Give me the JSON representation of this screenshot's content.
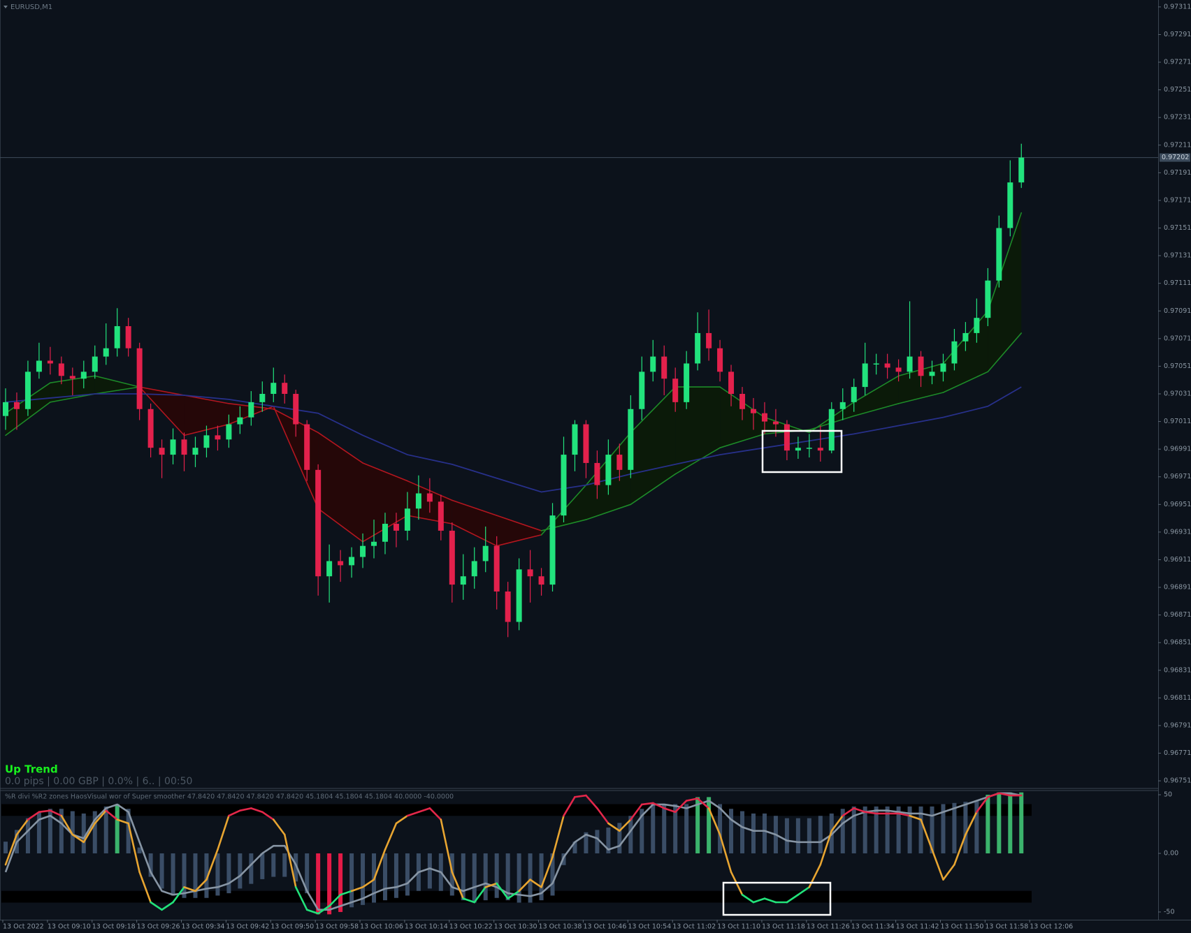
{
  "chart_data": [
    {
      "type": "candlestick",
      "title": "EURUSD,M1",
      "open": [
        0.97015,
        0.97025,
        0.9702,
        0.97047,
        0.97055,
        0.97053,
        0.97044,
        0.97042,
        0.97047,
        0.97058,
        0.97064,
        0.9708,
        0.97064,
        0.9702,
        0.96992,
        0.96987,
        0.96998,
        0.96987,
        0.96992,
        0.97001,
        0.96998,
        0.97009,
        0.97014,
        0.97025,
        0.97031,
        0.97039,
        0.97031,
        0.97009,
        0.96976,
        0.96899,
        0.9691,
        0.96907,
        0.96913,
        0.96921,
        0.96924,
        0.96937,
        0.96932,
        0.96948,
        0.96959,
        0.96953,
        0.96932,
        0.96893,
        0.96899,
        0.9691,
        0.96921,
        0.96888,
        0.96866,
        0.96904,
        0.96899,
        0.96893,
        0.96943,
        0.96987,
        0.97009,
        0.96981,
        0.96965,
        0.96987,
        0.96976,
        0.9702,
        0.97047,
        0.97058,
        0.97042,
        0.97025,
        0.97053,
        0.97075,
        0.97064,
        0.97047,
        0.97031,
        0.9702,
        0.97017,
        0.97011,
        0.97009,
        0.9699,
        0.96992,
        0.96992,
        0.9699,
        0.9702,
        0.97025,
        0.97036,
        0.97053,
        0.97053,
        0.9705,
        0.97047,
        0.97058,
        0.97044,
        0.97047,
        0.97053,
        0.97069,
        0.97075,
        0.97086,
        0.97113,
        0.97151,
        0.97184
      ],
      "high": [
        0.97035,
        0.97032,
        0.97055,
        0.97068,
        0.97065,
        0.97058,
        0.9705,
        0.97055,
        0.97066,
        0.97082,
        0.97093,
        0.97086,
        0.97068,
        0.97024,
        0.96998,
        0.97006,
        0.97003,
        0.97,
        0.97008,
        0.97008,
        0.97016,
        0.97022,
        0.97033,
        0.9704,
        0.9705,
        0.97045,
        0.97034,
        0.97012,
        0.9698,
        0.96922,
        0.96918,
        0.9692,
        0.9693,
        0.9694,
        0.96945,
        0.96945,
        0.9696,
        0.96972,
        0.9697,
        0.96958,
        0.96938,
        0.96915,
        0.9692,
        0.96935,
        0.96928,
        0.96895,
        0.96912,
        0.96918,
        0.96905,
        0.96952,
        0.97,
        0.97012,
        0.97012,
        0.9699,
        0.96998,
        0.96995,
        0.9703,
        0.97058,
        0.9707,
        0.97066,
        0.9705,
        0.97062,
        0.9709,
        0.97092,
        0.9707,
        0.97052,
        0.97036,
        0.97028,
        0.97025,
        0.9702,
        0.97012,
        0.97,
        0.97002,
        0.97008,
        0.97025,
        0.97035,
        0.97042,
        0.97068,
        0.9706,
        0.9706,
        0.97056,
        0.97098,
        0.97062,
        0.97055,
        0.9706,
        0.97078,
        0.97083,
        0.971,
        0.97122,
        0.9716,
        0.972,
        0.97212
      ],
      "low": [
        0.97005,
        0.97005,
        0.97015,
        0.97042,
        0.97045,
        0.97038,
        0.9703,
        0.97035,
        0.97042,
        0.97052,
        0.97058,
        0.97058,
        0.97012,
        0.96985,
        0.9697,
        0.9698,
        0.96975,
        0.96978,
        0.96985,
        0.9699,
        0.96992,
        0.97002,
        0.97008,
        0.97018,
        0.97025,
        0.97024,
        0.97,
        0.96968,
        0.96885,
        0.9688,
        0.96895,
        0.96898,
        0.96905,
        0.96912,
        0.96915,
        0.9692,
        0.96925,
        0.9694,
        0.96945,
        0.96925,
        0.9688,
        0.96882,
        0.9689,
        0.96902,
        0.96875,
        0.96855,
        0.9686,
        0.9688,
        0.96885,
        0.96888,
        0.96938,
        0.96975,
        0.9697,
        0.96955,
        0.96958,
        0.96968,
        0.9697,
        0.97012,
        0.9704,
        0.9703,
        0.97018,
        0.9702,
        0.97048,
        0.97055,
        0.9704,
        0.97022,
        0.97012,
        0.97005,
        0.97002,
        0.97,
        0.96983,
        0.96984,
        0.96985,
        0.96982,
        0.96988,
        0.97012,
        0.97018,
        0.9703,
        0.97045,
        0.97042,
        0.9704,
        0.97042,
        0.97036,
        0.97038,
        0.9704,
        0.97048,
        0.97062,
        0.97068,
        0.9708,
        0.97108,
        0.97145,
        0.9718
      ],
      "close": [
        0.97025,
        0.9702,
        0.97047,
        0.97055,
        0.97053,
        0.97044,
        0.97042,
        0.97047,
        0.97058,
        0.97064,
        0.9708,
        0.97064,
        0.9702,
        0.96992,
        0.96987,
        0.96998,
        0.96987,
        0.96992,
        0.97001,
        0.96998,
        0.97009,
        0.97014,
        0.97025,
        0.97031,
        0.97039,
        0.97031,
        0.97009,
        0.96976,
        0.96899,
        0.9691,
        0.96907,
        0.96913,
        0.96921,
        0.96924,
        0.96937,
        0.96932,
        0.96948,
        0.96959,
        0.96953,
        0.96932,
        0.96893,
        0.96899,
        0.9691,
        0.96921,
        0.96888,
        0.96866,
        0.96904,
        0.96899,
        0.96893,
        0.96943,
        0.96987,
        0.97009,
        0.96981,
        0.96965,
        0.96987,
        0.96976,
        0.9702,
        0.97047,
        0.97058,
        0.97042,
        0.97025,
        0.97053,
        0.97075,
        0.97064,
        0.97047,
        0.97031,
        0.9702,
        0.97017,
        0.97011,
        0.97009,
        0.9699,
        0.96992,
        0.96992,
        0.9699,
        0.9702,
        0.97025,
        0.97036,
        0.97053,
        0.97053,
        0.9705,
        0.97047,
        0.97058,
        0.97044,
        0.97047,
        0.97053,
        0.97069,
        0.97075,
        0.97086,
        0.97113,
        0.97151,
        0.97184,
        0.97202
      ],
      "up_color": "#22e37d",
      "down_color": "#e3214c",
      "ma_x": [
        0,
        4,
        8,
        12,
        16,
        20,
        24,
        28,
        32,
        36,
        40,
        44,
        48,
        52,
        56,
        60,
        64,
        68,
        72,
        76,
        80,
        84,
        88,
        91
      ],
      "slow_line": {
        "color": "#27308a",
        "values": [
          0.97025,
          0.97028,
          0.97031,
          0.97031,
          0.9703,
          0.97027,
          0.97022,
          0.97017,
          0.97001,
          0.96987,
          0.9698,
          0.9697,
          0.9696,
          0.96965,
          0.96973,
          0.9698,
          0.96987,
          0.96992,
          0.96997,
          0.97002,
          0.97008,
          0.97014,
          0.97022,
          0.97036
        ]
      },
      "fast_line": {
        "values": [
          0.97017,
          0.97039,
          0.97044,
          0.97036,
          0.97001,
          0.97009,
          0.97022,
          0.96948,
          0.96924,
          0.96943,
          0.96937,
          0.96921,
          0.96929,
          0.96965,
          0.97003,
          0.97036,
          0.97036,
          0.97014,
          0.97003,
          0.97025,
          0.97044,
          0.97053,
          0.97091,
          0.97162
        ]
      },
      "mid_line": {
        "values": [
          0.97001,
          0.97025,
          0.97031,
          0.97036,
          0.9703,
          0.97024,
          0.9702,
          0.97003,
          0.96981,
          0.96968,
          0.96954,
          0.96943,
          0.96932,
          0.9694,
          0.96951,
          0.96973,
          0.96992,
          0.97002,
          0.97005,
          0.97015,
          0.97024,
          0.97032,
          0.97047,
          0.97075
        ]
      },
      "trend_colors": {
        "up_line": "#1d8a28",
        "down_line": "#b3161f",
        "up_fill": "#0b1a09",
        "down_fill": "#250708"
      },
      "ylim": [
        0.96746,
        0.97316
      ],
      "yticks": [
        0.97311,
        0.97291,
        0.97271,
        0.97251,
        0.97231,
        0.97211,
        0.97191,
        0.97171,
        0.97151,
        0.97131,
        0.97111,
        0.97091,
        0.97071,
        0.97051,
        0.97031,
        0.97011,
        0.96991,
        0.96971,
        0.96951,
        0.96931,
        0.96911,
        0.96891,
        0.96871,
        0.96851,
        0.96831,
        0.96811,
        0.96791,
        0.96771,
        0.96751
      ],
      "xticks": [
        {
          "value": 0,
          "label": "13 Oct 2022"
        },
        {
          "value": 4,
          "label": "13 Oct 09:10"
        },
        {
          "value": 8,
          "label": "13 Oct 09:18"
        },
        {
          "value": 12,
          "label": "13 Oct 09:26"
        },
        {
          "value": 16,
          "label": "13 Oct 09:34"
        },
        {
          "value": 20,
          "label": "13 Oct 09:42"
        },
        {
          "value": 24,
          "label": "13 Oct 09:50"
        },
        {
          "value": 28,
          "label": "13 Oct 09:58"
        },
        {
          "value": 32,
          "label": "13 Oct 10:06"
        },
        {
          "value": 36,
          "label": "13 Oct 10:14"
        },
        {
          "value": 40,
          "label": "13 Oct 10:22"
        },
        {
          "value": 44,
          "label": "13 Oct 10:30"
        },
        {
          "value": 48,
          "label": "13 Oct 10:38"
        },
        {
          "value": 52,
          "label": "13 Oct 10:46"
        },
        {
          "value": 56,
          "label": "13 Oct 10:54"
        },
        {
          "value": 60,
          "label": "13 Oct 11:02"
        },
        {
          "value": 64,
          "label": "13 Oct 11:10"
        },
        {
          "value": 68,
          "label": "13 Oct 11:18"
        },
        {
          "value": 72,
          "label": "13 Oct 11:26"
        },
        {
          "value": 76,
          "label": "13 Oct 11:34"
        },
        {
          "value": 80,
          "label": "13 Oct 11:42"
        },
        {
          "value": 84,
          "label": "13 Oct 11:50"
        },
        {
          "value": 88,
          "label": "13 Oct 11:58"
        },
        {
          "value": 92,
          "label": "13 Oct 12:06"
        }
      ],
      "last_price": 0.97202,
      "annotations": [
        {
          "text": "Up Trend",
          "color": "#19f01e"
        },
        {
          "text": "0.0 pips | 0.00 GBP | 0.0% | 6.. | 00:50",
          "color": "#4c5763"
        }
      ]
    },
    {
      "type": "oscillator",
      "title": "%R divi %R2 zones  HaosVisual wor of Super smoother 47.8420 47.8420 47.8420 47.8420 45.1804 45.1804 45.1804 40.0000 -40.0000",
      "histogram": [
        10,
        20,
        30,
        35,
        38,
        38,
        36,
        34,
        36,
        40,
        42,
        38,
        5,
        -20,
        -30,
        -36,
        -38,
        -38,
        -38,
        -36,
        -34,
        -30,
        -26,
        -22,
        -20,
        -20,
        -24,
        -34,
        -52,
        -52,
        -50,
        -46,
        -44,
        -42,
        -40,
        -38,
        -36,
        -32,
        -30,
        -32,
        -36,
        -40,
        -42,
        -40,
        -38,
        -40,
        -42,
        -42,
        -40,
        -36,
        -10,
        10,
        18,
        20,
        22,
        26,
        32,
        38,
        42,
        42,
        42,
        42,
        48,
        48,
        42,
        38,
        36,
        34,
        34,
        32,
        30,
        30,
        30,
        32,
        34,
        38,
        40,
        40,
        40,
        40,
        40,
        40,
        40,
        40,
        42,
        43,
        44,
        45,
        50,
        52,
        52,
        52
      ],
      "histogram_colors": [
        "#3a4d66",
        "#3a4d66",
        "#3a4d66",
        "#3a4d66",
        "#3a4d66",
        "#3a4d66",
        "#3a4d66",
        "#3a4d66",
        "#3a4d66",
        "#3a4d66",
        "#3bb36c",
        "#3a4d66",
        "#3a4d66",
        "#3a4d66",
        "#3a4d66",
        "#3a4d66",
        "#3a4d66",
        "#3a4d66",
        "#3a4d66",
        "#3a4d66",
        "#3a4d66",
        "#3a4d66",
        "#3a4d66",
        "#3a4d66",
        "#3a4d66",
        "#3a4d66",
        "#3a4d66",
        "#3a4d66",
        "#e31b47",
        "#e31b47",
        "#e31b47",
        "#3a4d66",
        "#3a4d66",
        "#3a4d66",
        "#3a4d66",
        "#3a4d66",
        "#3a4d66",
        "#3a4d66",
        "#3a4d66",
        "#3a4d66",
        "#3a4d66",
        "#3a4d66",
        "#3a4d66",
        "#3a4d66",
        "#3a4d66",
        "#3a4d66",
        "#3a4d66",
        "#3a4d66",
        "#3a4d66",
        "#3a4d66",
        "#3a4d66",
        "#3a4d66",
        "#3a4d66",
        "#3a4d66",
        "#3a4d66",
        "#3a4d66",
        "#3a4d66",
        "#3a4d66",
        "#3a4d66",
        "#3a4d66",
        "#3a4d66",
        "#3a4d66",
        "#3bb36c",
        "#3bb36c",
        "#3a4d66",
        "#3a4d66",
        "#3a4d66",
        "#3a4d66",
        "#3a4d66",
        "#3a4d66",
        "#3a4d66",
        "#3a4d66",
        "#3a4d66",
        "#3a4d66",
        "#3a4d66",
        "#3a4d66",
        "#3a4d66",
        "#3a4d66",
        "#3a4d66",
        "#3a4d66",
        "#3a4d66",
        "#3a4d66",
        "#3a4d66",
        "#3a4d66",
        "#3a4d66",
        "#3a4d66",
        "#3a4d66",
        "#3a4d66",
        "#3bb36c",
        "#3bb36c",
        "#3bb36c",
        "#3bb36c"
      ],
      "slow_values": [
        -16.0,
        9.6,
        19.2,
        28.8,
        32.1,
        25.6,
        16.0,
        12.8,
        28.8,
        38.5,
        41.7,
        35.3,
        9.6,
        -16.0,
        -32.1,
        -35.3,
        -34.0,
        -32.1,
        -30.1,
        -28.8,
        -25.6,
        -19.2,
        -9.6,
        0,
        6.4,
        6.4,
        -9.6,
        -32.1,
        -48.1,
        -48.1,
        -44.9,
        -41.7,
        -38.5,
        -34.0,
        -30.1,
        -28.8,
        -25.6,
        -16.0,
        -12.8,
        -16.0,
        -28.8,
        -32.1,
        -28.8,
        -25.6,
        -28.8,
        -34.0,
        -35.3,
        -36.5,
        -34.0,
        -25.6,
        -3.2,
        9.6,
        16.0,
        12.8,
        3.2,
        6.4,
        19.2,
        32.1,
        41.7,
        41.7,
        40.4,
        38.5,
        41.7,
        44.9,
        38.5,
        28.8,
        22.4,
        19.2,
        19.2,
        16.0,
        10.9,
        9.6,
        9.6,
        9.6,
        16.0,
        25.6,
        32.1,
        35.3,
        36.5,
        36.5,
        35.3,
        34.0,
        34.0,
        32.1,
        35.3,
        38.5,
        41.7,
        44.9,
        48.1,
        51.3,
        51.3,
        49.4
      ],
      "slow_color": "#8795a4",
      "fast_values": [
        -9.6,
        16.0,
        28.8,
        35.3,
        36.5,
        32.1,
        16.0,
        9.6,
        25.6,
        36.5,
        28.8,
        25.6,
        -16.0,
        -41.7,
        -48.1,
        -41.7,
        -28.8,
        -32.1,
        -22.4,
        3.2,
        32.1,
        36.5,
        38.5,
        35.3,
        28.8,
        16.0,
        -28.8,
        -48.1,
        -51.3,
        -44.9,
        -35.3,
        -32.1,
        -28.8,
        -22.4,
        3.2,
        25.6,
        32.1,
        35.3,
        38.5,
        28.8,
        -16.0,
        -38.5,
        -41.7,
        -28.8,
        -25.6,
        -38.5,
        -32.1,
        -22.4,
        -28.8,
        -3.2,
        32.1,
        48.1,
        49.4,
        38.5,
        25.6,
        19.2,
        28.8,
        41.7,
        42.9,
        38.5,
        35.3,
        44.9,
        46.8,
        38.5,
        16.0,
        -16.0,
        -35.3,
        -41.7,
        -38.5,
        -41.7,
        -41.7,
        -35.3,
        -28.8,
        -9.6,
        19.2,
        32.1,
        38.5,
        35.3,
        34.0,
        34.0,
        34.0,
        32.1,
        28.8,
        3.2,
        -22.4,
        -9.6,
        16.0,
        35.3,
        48.1,
        51.3,
        49.4,
        49.4
      ],
      "fast_colors": {
        "high": "#e3274a",
        "mid": "#e8a531",
        "low": "#22e27a"
      },
      "zones": [
        [
          32,
          42
        ],
        [
          -42,
          -32
        ]
      ],
      "ylim": [
        -56,
        53
      ],
      "yticks": [
        50,
        {
          "value": 0,
          "label": "0.00"
        },
        -50
      ]
    }
  ]
}
